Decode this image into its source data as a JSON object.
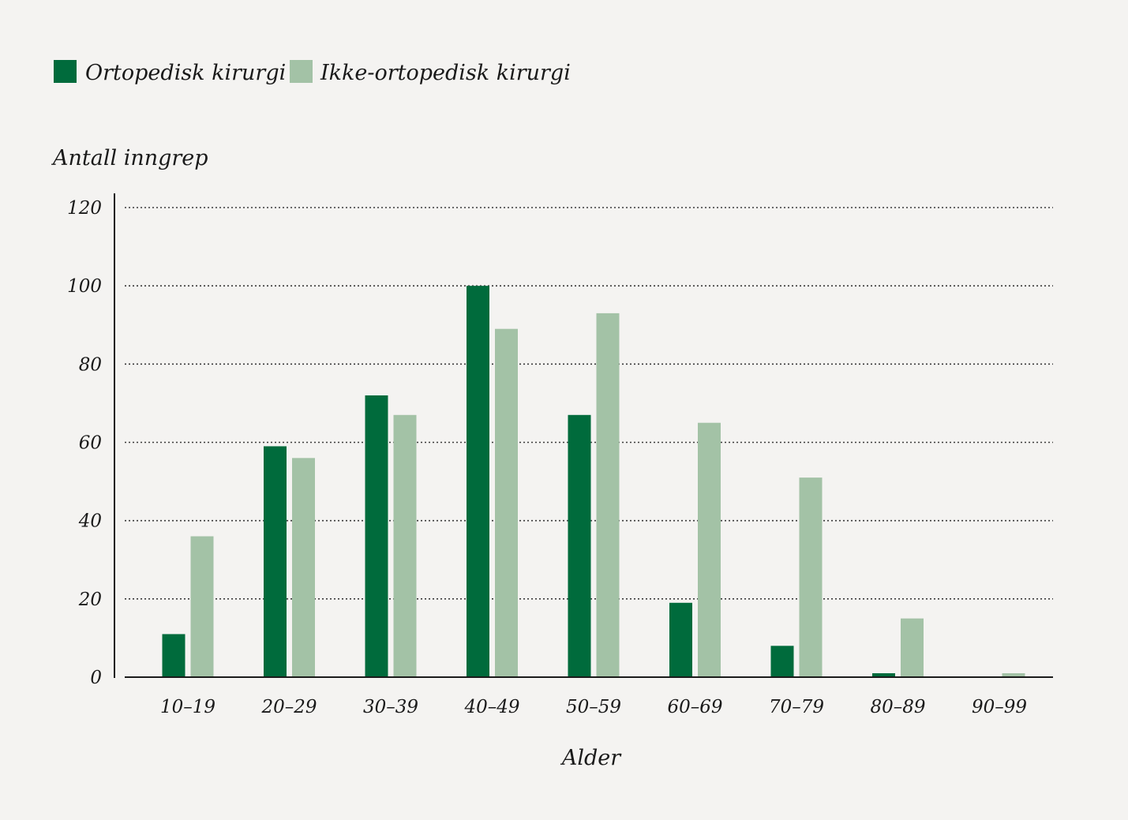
{
  "chart_data": {
    "type": "bar",
    "title": "",
    "xlabel": "Alder",
    "ylabel": "Antall inngrep",
    "ylim": [
      0,
      120
    ],
    "yticks": [
      0,
      20,
      40,
      60,
      80,
      100,
      120
    ],
    "grid": true,
    "legend_position": "top-left",
    "categories": [
      "10–19",
      "20–29",
      "30–39",
      "40–49",
      "50–59",
      "60–69",
      "70–79",
      "80–89",
      "90–99"
    ],
    "series": [
      {
        "name": "Ortopedisk kirurgi",
        "color": "#006b3c",
        "values": [
          11,
          59,
          72,
          100,
          67,
          19,
          8,
          1,
          0
        ]
      },
      {
        "name": "Ikke-ortopedisk kirurgi",
        "color": "#a3c2a6",
        "values": [
          36,
          56,
          67,
          89,
          93,
          65,
          51,
          15,
          1
        ]
      }
    ]
  }
}
